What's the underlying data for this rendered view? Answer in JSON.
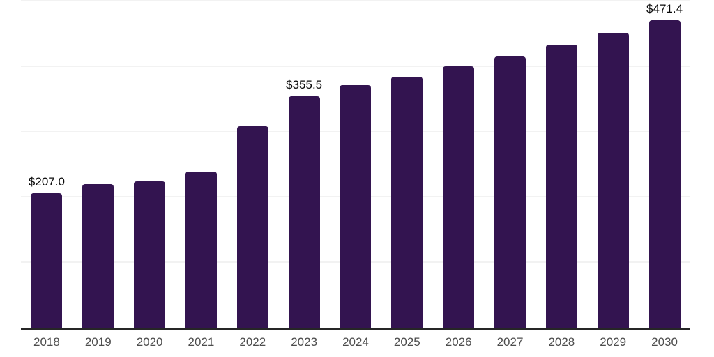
{
  "chart_data": {
    "type": "bar",
    "title": "",
    "xlabel": "",
    "ylabel": "",
    "categories": [
      "2018",
      "2019",
      "2020",
      "2021",
      "2022",
      "2023",
      "2024",
      "2025",
      "2026",
      "2027",
      "2028",
      "2029",
      "2030"
    ],
    "values": [
      207.0,
      220.3,
      224.5,
      239.5,
      309.4,
      355.5,
      371.8,
      385.1,
      400.9,
      415.4,
      434.0,
      452.3,
      471.4
    ],
    "bar_labels": [
      "$207.0",
      "",
      "",
      "",
      "",
      "$355.5",
      "",
      "",
      "",
      "",
      "",
      "",
      "$471.4"
    ],
    "ylim": [
      0,
      500
    ],
    "gridline_values": [
      100,
      200,
      300,
      400,
      500
    ],
    "grid": "on",
    "legend": "none",
    "colors": {
      "bar": "#331450",
      "grid": "#f2f2f2",
      "axis": "#262626",
      "bar_label_text": "#0a0a0a",
      "tick_label_text": "#4d4d4d",
      "background": "#ffffff"
    }
  }
}
